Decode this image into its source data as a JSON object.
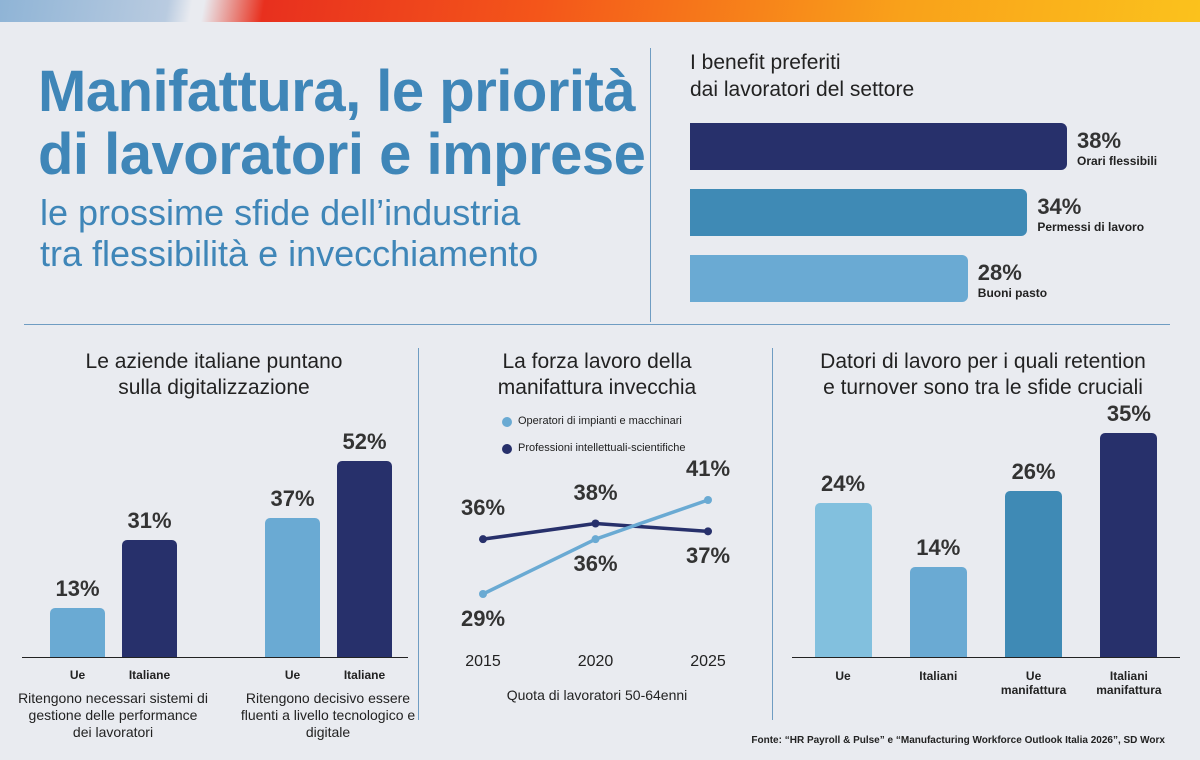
{
  "header": {
    "title": [
      "Manifattura, le priorità",
      "di lavoratori e imprese"
    ],
    "subtitle": [
      "le prossime sfide dell’industria",
      "tra flessibilità e invecchiamento"
    ]
  },
  "chart_data": [
    {
      "type": "hbar",
      "title": [
        "I benefit preferiti",
        "dai lavoratori del settore"
      ],
      "categories": [
        "Orari flessibili",
        "Permessi di lavoro",
        "Buoni pasto"
      ],
      "values": [
        38,
        34,
        28
      ],
      "value_labels": [
        "38%",
        "34%",
        "28%"
      ],
      "colors": [
        "#27306b",
        "#3f8ab5",
        "#6aaad3"
      ]
    },
    {
      "type": "grouped-bar",
      "title": [
        "Le aziende italiane puntano",
        "sulla digitalizzazione"
      ],
      "groups": [
        {
          "caption": "Ritengono necessari sistemi di gestione delle performance dei lavoratori",
          "categories": [
            "Ue",
            "Italiane"
          ],
          "values": [
            13,
            31
          ],
          "value_labels": [
            "13%",
            "31%"
          ]
        },
        {
          "caption": "Ritengono decisivo essere fluenti a livello tecnologico e digitale",
          "categories": [
            "Ue",
            "Italiane"
          ],
          "values": [
            37,
            52
          ],
          "value_labels": [
            "37%",
            "52%"
          ]
        }
      ],
      "colors": [
        "#6aaad3",
        "#27306b"
      ]
    },
    {
      "type": "line",
      "title": [
        "La forza lavoro della",
        "manifattura invecchia"
      ],
      "x": [
        2015,
        2020,
        2025
      ],
      "xlabel": "Quota di lavoratori 50-64enni",
      "series": [
        {
          "name": "Operatori di impianti e macchinari",
          "color": "#6aaad3",
          "values": [
            29,
            36,
            41
          ],
          "value_labels": [
            "29%",
            "36%",
            "41%"
          ]
        },
        {
          "name": "Professioni intellettuali-scientifiche",
          "color": "#27306b",
          "values": [
            36,
            38,
            37
          ],
          "value_labels": [
            "36%",
            "38%",
            "37%"
          ]
        }
      ]
    },
    {
      "type": "bar",
      "title": [
        "Datori di lavoro per i quali retention",
        "e turnover sono tra le sfide cruciali"
      ],
      "categories": [
        "Ue",
        "Italiani",
        "Ue manifattura",
        "Italiani manifattura"
      ],
      "values": [
        24,
        14,
        26,
        35
      ],
      "value_labels": [
        "24%",
        "14%",
        "26%",
        "35%"
      ],
      "colors": [
        "#82c0de",
        "#6aaad3",
        "#3f8ab5",
        "#27306b"
      ]
    }
  ],
  "source": "Fonte: “HR Payroll & Pulse” e “Manufacturing Workforce Outlook Italia 2026”, SD Worx"
}
